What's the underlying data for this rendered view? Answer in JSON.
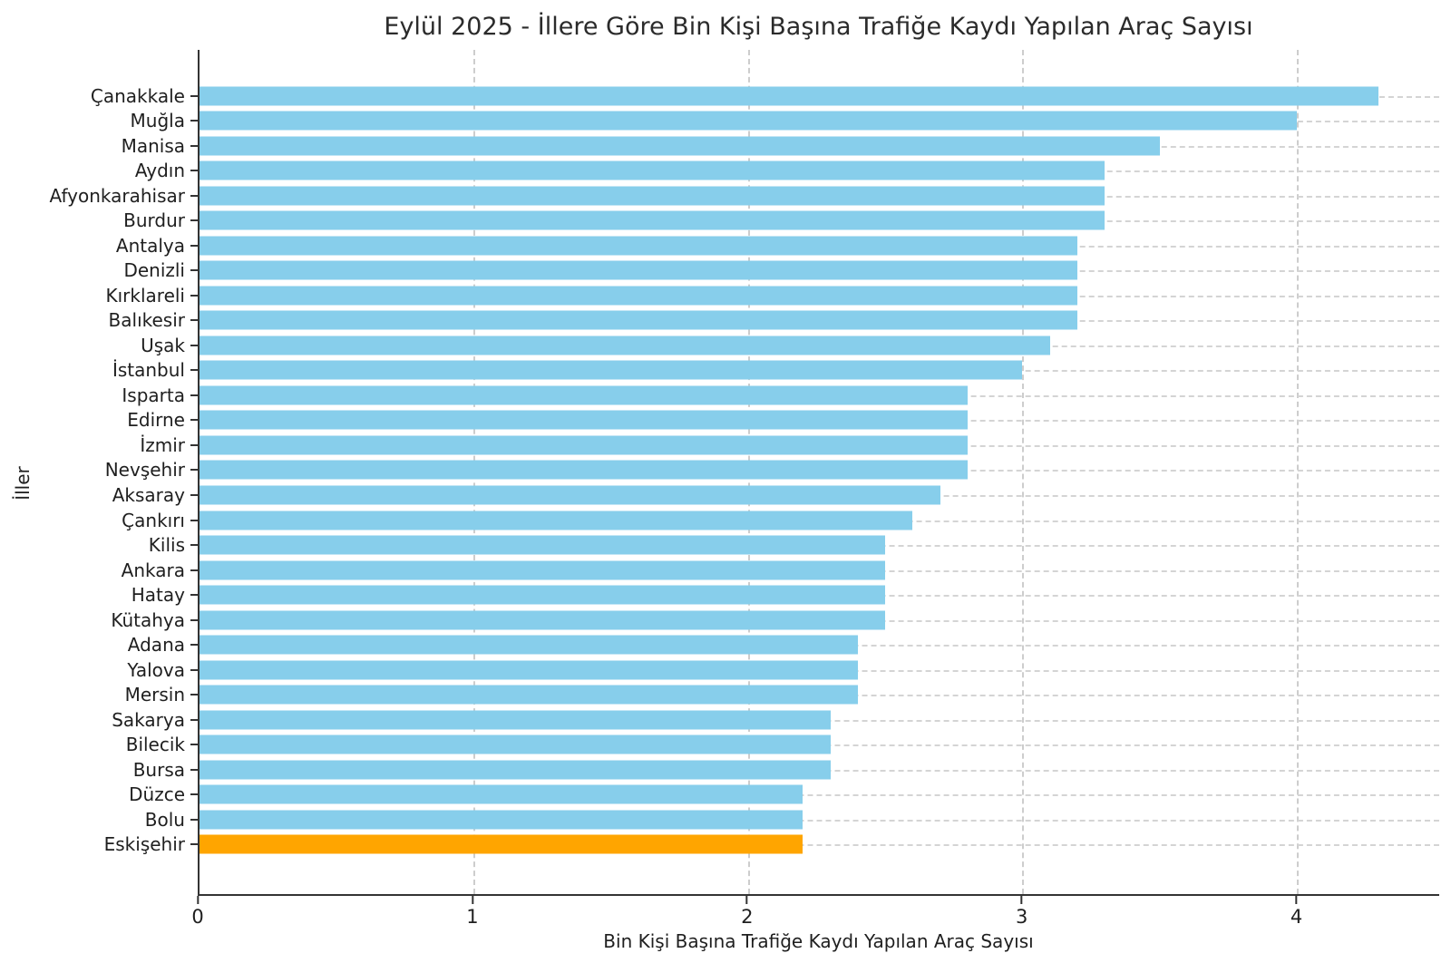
{
  "chart_data": {
    "type": "bar",
    "orientation": "horizontal",
    "title": "Eylül 2025 - İllere Göre Bin Kişi Başına Trafiğe Kaydı Yapılan Araç Sayısı",
    "xlabel": "Bin Kişi Başına Trafiğe Kaydı Yapılan Araç Sayısı",
    "ylabel": "İller",
    "categories": [
      "Çanakkale",
      "Muğla",
      "Manisa",
      "Aydın",
      "Afyonkarahisar",
      "Burdur",
      "Antalya",
      "Denizli",
      "Kırklareli",
      "Balıkesir",
      "Uşak",
      "İstanbul",
      "Isparta",
      "Edirne",
      "İzmir",
      "Nevşehir",
      "Aksaray",
      "Çankırı",
      "Kilis",
      "Ankara",
      "Hatay",
      "Kütahya",
      "Adana",
      "Yalova",
      "Mersin",
      "Sakarya",
      "Bilecik",
      "Bursa",
      "Düzce",
      "Bolu",
      "Eskişehir"
    ],
    "values": [
      4.3,
      4.0,
      3.5,
      3.3,
      3.3,
      3.3,
      3.2,
      3.2,
      3.2,
      3.2,
      3.1,
      3.0,
      2.8,
      2.8,
      2.8,
      2.8,
      2.7,
      2.6,
      2.5,
      2.5,
      2.5,
      2.5,
      2.4,
      2.4,
      2.4,
      2.3,
      2.3,
      2.3,
      2.2,
      2.2,
      2.2
    ],
    "bar_color": "#87CEEB",
    "highlight_color": "#FFA500",
    "highlight_category": "Eskişehir",
    "xlim": [
      0,
      4.52
    ],
    "xticks": [
      0,
      1,
      2,
      3,
      4
    ],
    "grid": true,
    "legend": "none"
  }
}
